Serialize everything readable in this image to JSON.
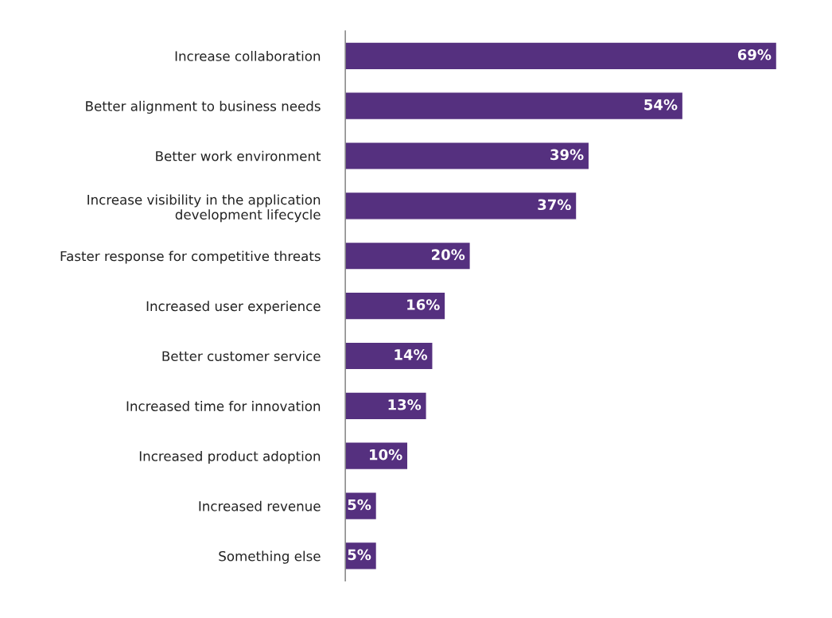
{
  "chart_data": {
    "type": "bar",
    "orientation": "horizontal",
    "categories": [
      "Increase collaboration",
      "Better alignment to business needs",
      "Better work environment",
      "Increase visibility in the application\ndevelopment lifecycle",
      "Faster response for competitive threats",
      "Increased user experience",
      "Better customer service",
      "Increased time for innovation",
      "Increased product adoption",
      "Increased revenue",
      "Something else"
    ],
    "values": [
      69,
      54,
      39,
      37,
      20,
      16,
      14,
      13,
      10,
      5,
      5
    ],
    "value_labels": [
      "69%",
      "54%",
      "39%",
      "37%",
      "20%",
      "16%",
      "14%",
      "13%",
      "10%",
      "5%",
      "5%"
    ],
    "color": "#55307f",
    "tick_labels": "y",
    "grid": false,
    "legend": false
  }
}
